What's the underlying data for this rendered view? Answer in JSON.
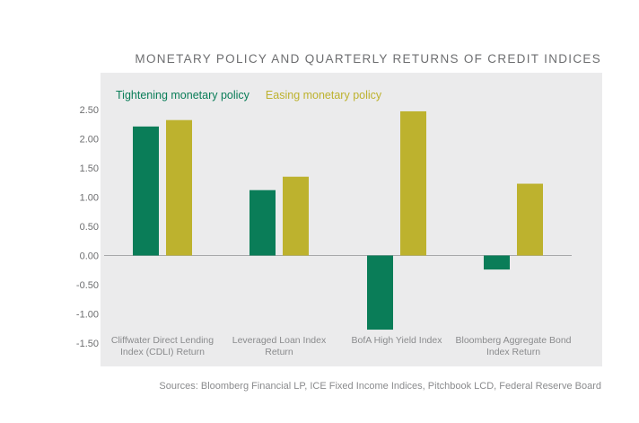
{
  "title": "MONETARY POLICY AND QUARTERLY RETURNS OF CREDIT INDICES",
  "source": "Sources: Bloomberg Financial LP, ICE Fixed Income Indices, Pitchbook LCD, Federal Reserve Board",
  "chart_data": {
    "type": "bar",
    "title": "MONETARY POLICY AND QUARTERLY RETURNS OF CREDIT INDICES",
    "categories": [
      [
        "Cliffwater Direct Lending",
        "Index (CDLI) Return"
      ],
      [
        "Leveraged Loan Index",
        "Return"
      ],
      [
        "BofA High Yield Index"
      ],
      [
        "Bloomberg Aggregate Bond",
        "Index Return"
      ]
    ],
    "series": [
      {
        "name": "Tightening monetary policy",
        "color": "#0a7d58",
        "values": [
          2.21,
          1.12,
          -1.27,
          -0.24
        ]
      },
      {
        "name": "Easing monetary policy",
        "color": "#bdb22e",
        "values": [
          2.32,
          1.35,
          2.47,
          1.23
        ]
      }
    ],
    "ylim": [
      -1.5,
      2.5
    ],
    "yticks": [
      "2.50",
      "2.00",
      "1.50",
      "1.00",
      "0.50",
      "0.00",
      "-0.50",
      "-1.00",
      "-1.50"
    ],
    "legend": "top-left",
    "grid": false
  }
}
